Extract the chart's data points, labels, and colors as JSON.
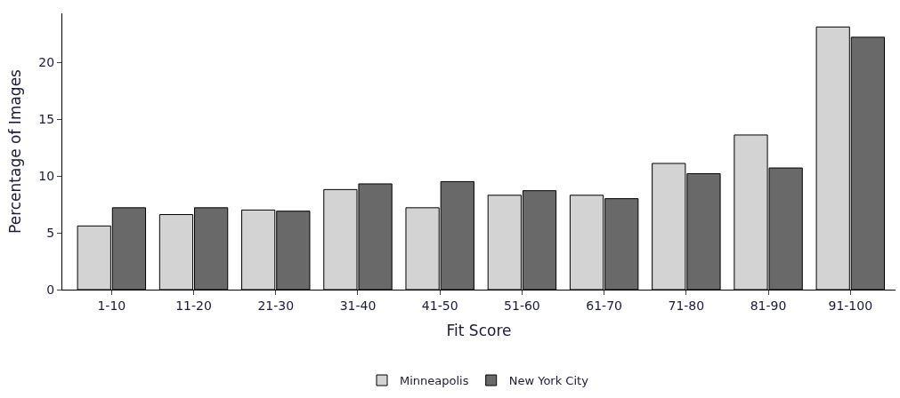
{
  "chart_data": {
    "type": "bar",
    "xlabel": "Fit Score",
    "ylabel": "Percentage of Images",
    "categories": [
      "1-10",
      "11-20",
      "21-30",
      "31-40",
      "41-50",
      "51-60",
      "61-70",
      "71-80",
      "81-90",
      "91-100"
    ],
    "series": [
      {
        "name": "Minneapolis",
        "color": "#d3d3d3",
        "values": [
          5.6,
          6.6,
          7.0,
          8.8,
          7.2,
          8.3,
          8.3,
          11.1,
          13.6,
          23.1
        ]
      },
      {
        "name": "New York City",
        "color": "#696969",
        "values": [
          7.2,
          7.2,
          6.9,
          9.3,
          9.5,
          8.7,
          8.0,
          10.2,
          10.7,
          22.2
        ]
      }
    ],
    "ylim": [
      0,
      24.3
    ],
    "yticks": [
      0,
      5,
      10,
      15,
      20
    ],
    "legend": "bottom"
  }
}
